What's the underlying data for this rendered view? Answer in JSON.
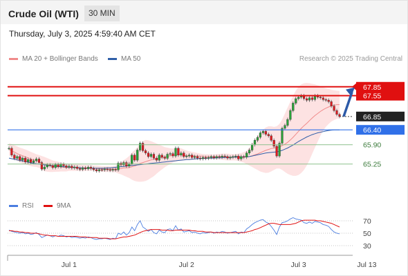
{
  "header": {
    "title": "Crude Oil (WTI)",
    "interval": "30 MIN"
  },
  "datetime": "Thursday, July 3, 2025 4:59:40 AM CET",
  "credit": "Research © 2025 Trading Central",
  "colors": {
    "up": "#2aa339",
    "down": "#e0191f",
    "bollinger_fill": "#fde2e2",
    "ma20": "#f08a8a",
    "ma50": "#2f5ea8",
    "resistance": "#e01010",
    "pivot": "#3070e8",
    "support": "#8cc08c",
    "last": "#222222",
    "arrow": "#2c5aa8",
    "rsi": "#4a7de0",
    "rsi_ma": "#e01010"
  },
  "chart_data": [
    {
      "type": "candlestick",
      "legend": [
        {
          "name": "MA 20 + Bollinger Bands",
          "color": "#f08a8a"
        },
        {
          "name": "MA 50",
          "color": "#2f5ea8"
        }
      ],
      "x_ticks": [
        "Jul 1",
        "Jul 2",
        "Jul 3",
        "Jul 13"
      ],
      "x_tick_index": [
        22,
        65,
        106,
        131
      ],
      "ylim": [
        64.5,
        68.1
      ],
      "levels": [
        {
          "value": 67.85,
          "label": "67.85",
          "kind": "resistance"
        },
        {
          "value": 67.55,
          "label": "67.55",
          "kind": "resistance"
        },
        {
          "value": 66.85,
          "label": "66.85",
          "kind": "last"
        },
        {
          "value": 66.4,
          "label": "66.40",
          "kind": "pivot"
        },
        {
          "value": 65.9,
          "label": "65.90",
          "kind": "support"
        },
        {
          "value": 65.25,
          "label": "65.25",
          "kind": "support"
        }
      ],
      "arrow": {
        "from": 66.85,
        "to": 67.85
      },
      "closes": [
        65.78,
        65.55,
        65.44,
        65.5,
        65.38,
        65.45,
        65.32,
        65.4,
        65.3,
        65.36,
        65.42,
        65.3,
        65.08,
        65.15,
        65.22,
        65.2,
        65.13,
        65.23,
        65.16,
        65.24,
        65.19,
        65.14,
        65.18,
        65.12,
        65.15,
        65.1,
        65.07,
        65.12,
        65.09,
        65.14,
        65.1,
        65.06,
        65.02,
        65.06,
        65.05,
        65.08,
        65.06,
        65.04,
        65.07,
        65.05,
        65.28,
        65.22,
        65.3,
        65.18,
        65.26,
        65.55,
        65.38,
        65.72,
        65.95,
        65.7,
        65.62,
        65.5,
        65.58,
        65.45,
        65.38,
        65.55,
        65.48,
        65.44,
        65.58,
        65.6,
        65.52,
        65.78,
        65.55,
        65.62,
        65.5,
        65.52,
        65.55,
        65.47,
        65.5,
        65.45,
        65.43,
        65.47,
        65.44,
        65.47,
        65.5,
        65.46,
        65.5,
        65.48,
        65.52,
        65.5,
        65.45,
        65.48,
        65.5,
        65.52,
        65.42,
        65.5,
        65.48,
        65.62,
        65.72,
        65.9,
        66.05,
        66.15,
        66.3,
        66.35,
        66.25,
        66.2,
        66.05,
        65.85,
        65.52,
        65.95,
        66.45,
        66.55,
        66.75,
        67.05,
        67.3,
        67.45,
        67.5,
        67.55,
        67.45,
        67.4,
        67.48,
        67.42,
        67.55,
        67.5,
        67.48,
        67.42,
        67.4,
        67.35,
        67.2,
        67.05,
        66.92,
        66.85
      ],
      "ma20": [
        65.75,
        65.69,
        65.65,
        65.6,
        65.56,
        65.53,
        65.49,
        65.46,
        65.42,
        65.39,
        65.37,
        65.33,
        65.28,
        65.25,
        65.22,
        65.2,
        65.18,
        65.17,
        65.16,
        65.15,
        65.14,
        65.13,
        65.14,
        65.13,
        65.13,
        65.13,
        65.12,
        65.12,
        65.12,
        65.12,
        65.12,
        65.11,
        65.1,
        65.09,
        65.09,
        65.08,
        65.08,
        65.08,
        65.08,
        65.08,
        65.09,
        65.1,
        65.12,
        65.12,
        65.13,
        65.16,
        65.18,
        65.22,
        65.27,
        65.3,
        65.33,
        65.36,
        65.39,
        65.41,
        65.43,
        65.45,
        65.47,
        65.49,
        65.51,
        65.53,
        65.54,
        65.56,
        65.57,
        65.56,
        65.54,
        65.53,
        65.53,
        65.52,
        65.52,
        65.52,
        65.52,
        65.51,
        65.5,
        65.5,
        65.49,
        65.48,
        65.49,
        65.49,
        65.49,
        65.49,
        65.49,
        65.48,
        65.48,
        65.48,
        65.48,
        65.48,
        65.48,
        65.49,
        65.5,
        65.53,
        65.56,
        65.59,
        65.63,
        65.67,
        65.71,
        65.74,
        65.77,
        65.79,
        65.8,
        65.82,
        65.87,
        65.92,
        65.98,
        66.06,
        66.15,
        66.25,
        66.35,
        66.45,
        66.54,
        66.62,
        66.71,
        66.8,
        66.88,
        66.95,
        67.02,
        67.08,
        67.13,
        67.17,
        67.2,
        67.23,
        67.25,
        67.25
      ],
      "bb_upper": [
        65.95,
        65.92,
        65.88,
        65.84,
        65.8,
        65.77,
        65.74,
        65.7,
        65.66,
        65.62,
        65.58,
        65.55,
        65.52,
        65.49,
        65.45,
        65.41,
        65.37,
        65.35,
        65.33,
        65.3,
        65.28,
        65.26,
        65.25,
        65.24,
        65.24,
        65.23,
        65.23,
        65.22,
        65.22,
        65.21,
        65.21,
        65.2,
        65.2,
        65.19,
        65.18,
        65.18,
        65.18,
        65.17,
        65.18,
        65.19,
        65.25,
        65.3,
        65.38,
        65.44,
        65.52,
        65.64,
        65.72,
        65.82,
        65.94,
        66.02,
        66.06,
        66.05,
        66.02,
        65.98,
        65.94,
        65.9,
        65.86,
        65.82,
        65.8,
        65.78,
        65.77,
        65.78,
        65.8,
        65.78,
        65.74,
        65.7,
        65.68,
        65.66,
        65.64,
        65.62,
        65.6,
        65.59,
        65.58,
        65.58,
        65.57,
        65.57,
        65.58,
        65.59,
        65.6,
        65.6,
        65.6,
        65.59,
        65.58,
        65.58,
        65.6,
        65.62,
        65.65,
        65.7,
        65.8,
        65.92,
        66.05,
        66.18,
        66.3,
        66.4,
        66.48,
        66.52,
        66.52,
        66.5,
        66.52,
        66.6,
        66.75,
        66.95,
        67.15,
        67.35,
        67.55,
        67.72,
        67.85,
        67.93,
        67.97,
        67.98,
        67.97,
        67.95,
        67.93,
        67.9,
        67.87,
        67.83,
        67.8,
        67.78,
        67.75,
        67.73,
        67.72,
        67.71
      ],
      "bb_lower": [
        65.55,
        65.47,
        65.4,
        65.35,
        65.31,
        65.27,
        65.24,
        65.21,
        65.18,
        65.16,
        65.15,
        65.12,
        65.05,
        65.01,
        64.99,
        64.98,
        64.98,
        64.99,
        64.99,
        65.0,
        65.0,
        65.0,
        65.02,
        65.02,
        65.02,
        65.02,
        65.01,
        65.01,
        65.02,
        65.02,
        65.02,
        65.01,
        65.0,
        64.99,
        64.99,
        64.98,
        64.98,
        64.98,
        64.98,
        64.97,
        64.93,
        64.9,
        64.86,
        64.82,
        64.78,
        64.72,
        64.68,
        64.66,
        64.65,
        64.66,
        64.68,
        64.72,
        64.78,
        64.84,
        64.92,
        65.0,
        65.07,
        65.14,
        65.2,
        65.25,
        65.3,
        65.33,
        65.35,
        65.36,
        65.37,
        65.38,
        65.39,
        65.39,
        65.4,
        65.4,
        65.41,
        65.41,
        65.41,
        65.41,
        65.41,
        65.41,
        65.41,
        65.4,
        65.39,
        65.38,
        65.37,
        65.37,
        65.37,
        65.37,
        65.35,
        65.32,
        65.3,
        65.25,
        65.2,
        65.15,
        65.1,
        65.05,
        65.0,
        64.97,
        64.95,
        64.96,
        65.0,
        65.05,
        65.1,
        65.1,
        65.05,
        64.98,
        64.92,
        64.88,
        64.85,
        64.85,
        64.88,
        64.95,
        65.05,
        65.2,
        65.38,
        65.6,
        65.8,
        66.0,
        66.2,
        66.38,
        66.5,
        66.6,
        66.68,
        66.73,
        66.77,
        66.79
      ],
      "ma50": [
        65.45,
        65.43,
        65.41,
        65.39,
        65.37,
        65.35,
        65.33,
        65.31,
        65.29,
        65.27,
        65.26,
        65.25,
        65.23,
        65.22,
        65.21,
        65.2,
        65.19,
        65.18,
        65.17,
        65.16,
        65.16,
        65.15,
        65.14,
        65.14,
        65.13,
        65.13,
        65.12,
        65.12,
        65.11,
        65.11,
        65.11,
        65.11,
        65.11,
        65.11,
        65.11,
        65.11,
        65.12,
        65.12,
        65.13,
        65.14,
        65.15,
        65.16,
        65.17,
        65.18,
        65.19,
        65.2,
        65.21,
        65.22,
        65.23,
        65.24,
        65.25,
        65.26,
        65.27,
        65.28,
        65.29,
        65.3,
        65.31,
        65.32,
        65.33,
        65.34,
        65.35,
        65.36,
        65.37,
        65.38,
        65.39,
        65.4,
        65.4,
        65.41,
        65.42,
        65.43,
        65.43,
        65.44,
        65.44,
        65.45,
        65.45,
        65.45,
        65.46,
        65.46,
        65.46,
        65.47,
        65.47,
        65.47,
        65.48,
        65.48,
        65.48,
        65.48,
        65.49,
        65.49,
        65.5,
        65.52,
        65.54,
        65.56,
        65.58,
        65.6,
        65.62,
        65.63,
        65.64,
        65.65,
        65.66,
        65.68,
        65.71,
        65.75,
        65.79,
        65.84,
        65.89,
        65.95,
        66.01,
        66.06,
        66.11,
        66.16,
        66.2,
        66.24,
        66.27,
        66.3,
        66.32,
        66.34,
        66.36,
        66.38,
        66.39,
        66.4,
        66.4,
        66.4
      ]
    },
    {
      "type": "line",
      "legend": [
        {
          "name": "RSI",
          "color": "#4a7de0"
        },
        {
          "name": "9MA",
          "color": "#e01010"
        }
      ],
      "ylim": [
        25,
        78
      ],
      "y_ticks": [
        70,
        50,
        30
      ],
      "rsi": [
        55,
        53,
        52,
        51,
        50,
        51,
        49,
        50,
        48,
        49,
        51,
        48,
        43,
        45,
        47,
        46,
        44,
        46,
        45,
        47,
        46,
        44,
        45,
        43,
        44,
        43,
        42,
        43,
        42,
        44,
        43,
        41,
        40,
        41,
        41,
        42,
        41,
        40,
        42,
        41,
        50,
        48,
        52,
        47,
        51,
        60,
        54,
        64,
        70,
        60,
        57,
        53,
        56,
        51,
        49,
        55,
        52,
        51,
        56,
        57,
        54,
        62,
        55,
        57,
        52,
        53,
        54,
        51,
        52,
        50,
        49,
        51,
        50,
        51,
        52,
        50,
        52,
        51,
        53,
        52,
        50,
        51,
        52,
        53,
        49,
        52,
        51,
        57,
        60,
        64,
        67,
        69,
        71,
        72,
        68,
        66,
        61,
        55,
        48,
        60,
        67,
        68,
        70,
        73,
        75,
        73,
        72,
        71,
        67,
        66,
        68,
        66,
        69,
        68,
        67,
        64,
        63,
        61,
        56,
        52,
        50,
        49
      ],
      "ma": [
        54,
        54,
        53,
        53,
        52,
        52,
        51,
        51,
        50,
        50,
        50,
        49,
        48,
        47,
        47,
        46,
        46,
        46,
        45,
        45,
        45,
        45,
        45,
        45,
        45,
        45,
        44,
        44,
        44,
        43,
        43,
        43,
        43,
        42,
        42,
        42,
        42,
        41,
        41,
        41,
        42,
        43,
        44,
        44,
        45,
        46,
        47,
        49,
        51,
        53,
        54,
        55,
        56,
        56,
        56,
        56,
        55,
        55,
        55,
        54,
        54,
        55,
        55,
        55,
        55,
        55,
        55,
        54,
        54,
        53,
        53,
        53,
        52,
        52,
        52,
        51,
        51,
        51,
        51,
        51,
        51,
        51,
        51,
        51,
        51,
        51,
        51,
        52,
        53,
        54,
        56,
        57,
        59,
        61,
        63,
        65,
        66,
        66,
        65,
        64,
        64,
        64,
        64,
        64,
        65,
        66,
        68,
        70,
        71,
        71,
        71,
        71,
        71,
        70,
        70,
        69,
        68,
        67,
        66,
        64,
        62,
        60
      ]
    }
  ]
}
